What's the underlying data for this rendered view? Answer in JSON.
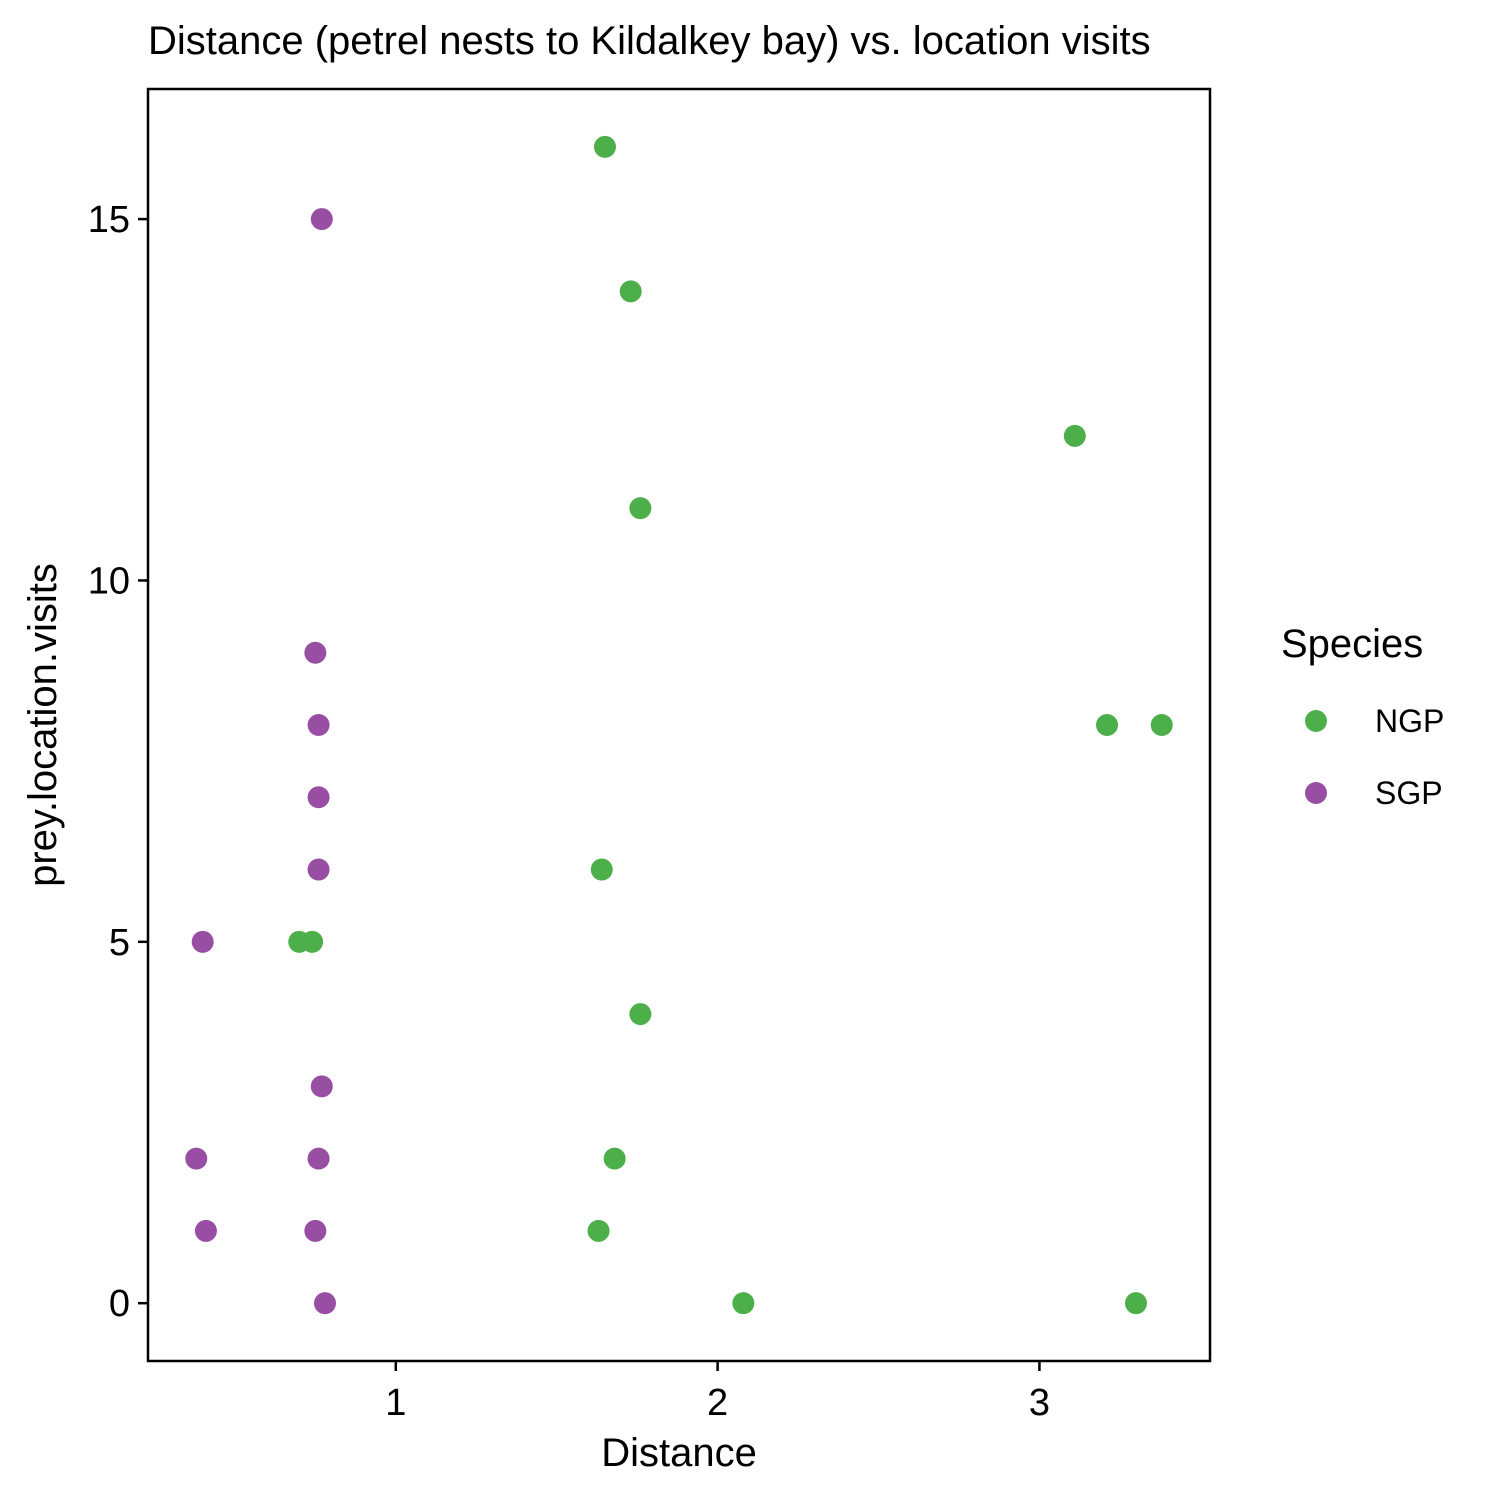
{
  "chart_data": {
    "type": "scatter",
    "title": "Distance (petrel nests to Kildalkey bay) vs. location visits",
    "xlabel": "Distance",
    "ylabel": "prey.location.visits",
    "xlim": [
      0.23,
      3.53
    ],
    "ylim": [
      -0.8,
      16.8
    ],
    "xticks": [
      1,
      2,
      3
    ],
    "yticks": [
      0,
      5,
      10,
      15
    ],
    "grid": false,
    "legend": {
      "title": "Species",
      "position": "right",
      "entries": [
        "NGP",
        "SGP"
      ]
    },
    "series": [
      {
        "name": "NGP",
        "color": "#4daf4a",
        "points": [
          {
            "x": 1.65,
            "y": 16
          },
          {
            "x": 1.73,
            "y": 14
          },
          {
            "x": 3.11,
            "y": 12
          },
          {
            "x": 1.76,
            "y": 11
          },
          {
            "x": 3.21,
            "y": 8
          },
          {
            "x": 3.38,
            "y": 8
          },
          {
            "x": 1.64,
            "y": 6
          },
          {
            "x": 0.7,
            "y": 5
          },
          {
            "x": 0.74,
            "y": 5
          },
          {
            "x": 1.76,
            "y": 4
          },
          {
            "x": 1.68,
            "y": 2
          },
          {
            "x": 1.63,
            "y": 1
          },
          {
            "x": 2.08,
            "y": 0
          },
          {
            "x": 3.3,
            "y": 0
          }
        ]
      },
      {
        "name": "SGP",
        "color": "#984ea3",
        "points": [
          {
            "x": 0.77,
            "y": 15
          },
          {
            "x": 0.75,
            "y": 9
          },
          {
            "x": 0.76,
            "y": 8
          },
          {
            "x": 0.76,
            "y": 7
          },
          {
            "x": 0.76,
            "y": 6
          },
          {
            "x": 0.4,
            "y": 5
          },
          {
            "x": 0.77,
            "y": 3
          },
          {
            "x": 0.38,
            "y": 2
          },
          {
            "x": 0.76,
            "y": 2
          },
          {
            "x": 0.41,
            "y": 1
          },
          {
            "x": 0.75,
            "y": 1
          },
          {
            "x": 0.78,
            "y": 0
          }
        ]
      }
    ]
  }
}
